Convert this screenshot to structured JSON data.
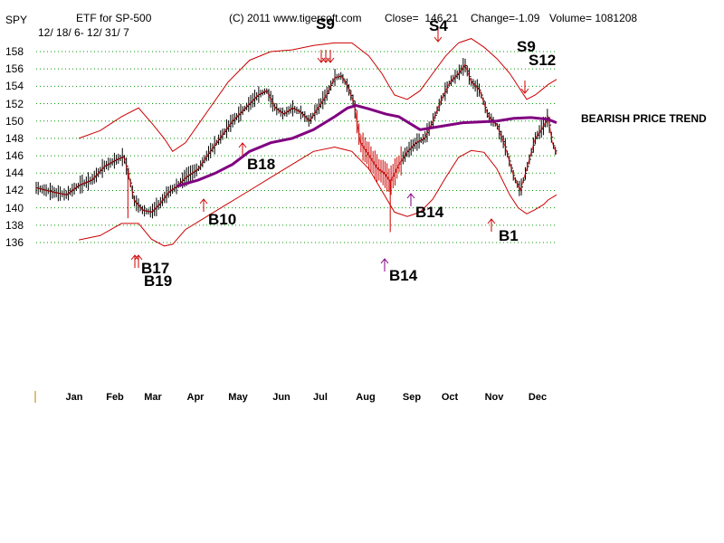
{
  "header": {
    "symbol": "SPY",
    "title": "ETF for SP-500",
    "date_range": "12/ 18/ 6- 12/ 31/ 7",
    "copyright": "(C) 2011 www.tigersoft.com",
    "close": "Close=  146.21",
    "change": "Change=-1.09",
    "volume": "Volume= 1081208"
  },
  "trend_label": "BEARISH PRICE TREND",
  "colors": {
    "price": "#000000",
    "band": "#cc0000",
    "ma": "#800080",
    "grid": "#009900",
    "sell": "#cc0000",
    "buy": "#cc0000",
    "buy_alt": "#800080"
  },
  "chart_data": {
    "type": "line",
    "title": "ETF for SP-500",
    "ylim": [
      135,
      159
    ],
    "y_ticks": [
      136,
      138,
      140,
      142,
      144,
      146,
      148,
      150,
      152,
      154,
      156,
      158
    ],
    "x_range": [
      0,
      12.2
    ],
    "months": [
      "Jan",
      "Feb",
      "Mar",
      "Apr",
      "May",
      "Jun",
      "Jul",
      "Aug",
      "Sep",
      "Oct",
      "Nov",
      "Dec"
    ],
    "price": [
      [
        0,
        142.3
      ],
      [
        0.4,
        141.8
      ],
      [
        0.7,
        141.5
      ],
      [
        1,
        142.6
      ],
      [
        1.3,
        143.2
      ],
      [
        1.6,
        144.8
      ],
      [
        1.9,
        145.6
      ],
      [
        2.05,
        145.9
      ],
      [
        2.15,
        144.2
      ],
      [
        2.3,
        140.8
      ],
      [
        2.5,
        139.7
      ],
      [
        2.7,
        139.5
      ],
      [
        2.9,
        140.5
      ],
      [
        3.1,
        141.8
      ],
      [
        3.3,
        142.5
      ],
      [
        3.5,
        143.5
      ],
      [
        3.8,
        144.5
      ],
      [
        4,
        146
      ],
      [
        4.3,
        148
      ],
      [
        4.6,
        150
      ],
      [
        4.9,
        151.5
      ],
      [
        5.2,
        153
      ],
      [
        5.4,
        153.5
      ],
      [
        5.6,
        151.5
      ],
      [
        5.8,
        150.8
      ],
      [
        6,
        151.5
      ],
      [
        6.2,
        151
      ],
      [
        6.4,
        150
      ],
      [
        6.6,
        151.5
      ],
      [
        6.8,
        153
      ],
      [
        7,
        155
      ],
      [
        7.15,
        155.2
      ],
      [
        7.3,
        154
      ],
      [
        7.45,
        152
      ],
      [
        7.6,
        147.5
      ],
      [
        7.8,
        146
      ],
      [
        8,
        144.5
      ],
      [
        8.15,
        144
      ],
      [
        8.3,
        143
      ],
      [
        8.5,
        145
      ],
      [
        8.7,
        146.5
      ],
      [
        8.9,
        147.5
      ],
      [
        9.1,
        148
      ],
      [
        9.3,
        150
      ],
      [
        9.5,
        152.5
      ],
      [
        9.7,
        154.5
      ],
      [
        9.9,
        155.5
      ],
      [
        10.05,
        156.5
      ],
      [
        10.2,
        154.5
      ],
      [
        10.4,
        153.5
      ],
      [
        10.6,
        150.5
      ],
      [
        10.8,
        149.5
      ],
      [
        11,
        147
      ],
      [
        11.2,
        143.5
      ],
      [
        11.35,
        142
      ],
      [
        11.5,
        144.5
      ],
      [
        11.7,
        148
      ],
      [
        11.9,
        149.5
      ],
      [
        12,
        150.5
      ],
      [
        12.1,
        147.5
      ],
      [
        12.2,
        146.2
      ]
    ],
    "upper_band": [
      [
        1,
        148
      ],
      [
        1.5,
        148.9
      ],
      [
        2,
        150.5
      ],
      [
        2.4,
        151.5
      ],
      [
        2.7,
        149.8
      ],
      [
        3,
        148
      ],
      [
        3.2,
        146.5
      ],
      [
        3.5,
        147.5
      ],
      [
        4,
        151
      ],
      [
        4.5,
        154.5
      ],
      [
        5,
        157
      ],
      [
        5.5,
        158
      ],
      [
        6,
        158.2
      ],
      [
        6.5,
        158.7
      ],
      [
        7,
        159
      ],
      [
        7.4,
        159
      ],
      [
        7.8,
        157.5
      ],
      [
        8.1,
        155.5
      ],
      [
        8.4,
        153
      ],
      [
        8.7,
        152.5
      ],
      [
        9,
        153.5
      ],
      [
        9.3,
        155.5
      ],
      [
        9.6,
        157.5
      ],
      [
        9.9,
        159
      ],
      [
        10.2,
        159.5
      ],
      [
        10.5,
        158.5
      ],
      [
        10.8,
        157.2
      ],
      [
        11.1,
        155.5
      ],
      [
        11.3,
        154
      ],
      [
        11.5,
        152.5
      ],
      [
        11.7,
        153
      ],
      [
        11.9,
        153.8
      ],
      [
        12,
        154.2
      ],
      [
        12.2,
        154.8
      ]
    ],
    "lower_band": [
      [
        1,
        136.3
      ],
      [
        1.5,
        136.8
      ],
      [
        2,
        138.2
      ],
      [
        2.4,
        138.2
      ],
      [
        2.7,
        136.4
      ],
      [
        3,
        135.6
      ],
      [
        3.2,
        135.8
      ],
      [
        3.5,
        137.5
      ],
      [
        4,
        139
      ],
      [
        4.5,
        140.5
      ],
      [
        5,
        142
      ],
      [
        5.5,
        143.5
      ],
      [
        6,
        145
      ],
      [
        6.5,
        146.5
      ],
      [
        7,
        147
      ],
      [
        7.4,
        146.5
      ],
      [
        7.8,
        144.5
      ],
      [
        8.1,
        142
      ],
      [
        8.4,
        139.5
      ],
      [
        8.7,
        139
      ],
      [
        9,
        139.5
      ],
      [
        9.3,
        141
      ],
      [
        9.6,
        143.5
      ],
      [
        9.9,
        145.8
      ],
      [
        10.2,
        146.6
      ],
      [
        10.5,
        146.4
      ],
      [
        10.8,
        144.5
      ],
      [
        11.1,
        141.5
      ],
      [
        11.3,
        140
      ],
      [
        11.5,
        139.3
      ],
      [
        11.7,
        139.8
      ],
      [
        11.9,
        140.4
      ],
      [
        12,
        140.9
      ],
      [
        12.2,
        141.5
      ]
    ],
    "ma": [
      [
        3.3,
        142.5
      ],
      [
        3.8,
        143.2
      ],
      [
        4.2,
        144
      ],
      [
        4.6,
        145
      ],
      [
        5,
        146.5
      ],
      [
        5.5,
        147.5
      ],
      [
        6,
        148
      ],
      [
        6.5,
        149
      ],
      [
        7,
        150.5
      ],
      [
        7.3,
        151.5
      ],
      [
        7.5,
        151.8
      ],
      [
        7.8,
        151.4
      ],
      [
        8.2,
        150.8
      ],
      [
        8.5,
        150.5
      ],
      [
        9,
        149
      ],
      [
        9.5,
        149.4
      ],
      [
        10,
        149.8
      ],
      [
        10.4,
        149.9
      ],
      [
        10.8,
        150
      ],
      [
        11.2,
        150.3
      ],
      [
        11.6,
        150.4
      ],
      [
        12,
        150.2
      ],
      [
        12.2,
        149.8
      ]
    ],
    "signals": [
      {
        "label": "S9",
        "type": "sell"
      },
      {
        "label": "S4",
        "type": "sell"
      },
      {
        "label": "S9",
        "type": "sell"
      },
      {
        "label": "S12",
        "type": "sell"
      },
      {
        "label": "B17",
        "type": "buy"
      },
      {
        "label": "B19",
        "type": "buy"
      },
      {
        "label": "B10",
        "type": "buy"
      },
      {
        "label": "B18",
        "type": "buy"
      },
      {
        "label": "B14",
        "type": "buy"
      },
      {
        "label": "B14",
        "type": "buy"
      },
      {
        "label": "B1",
        "type": "buy"
      }
    ]
  }
}
